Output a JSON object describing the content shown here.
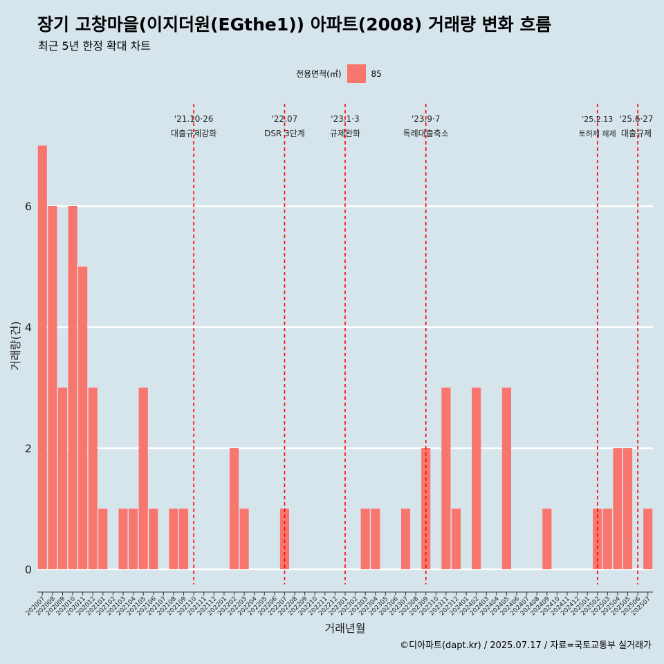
{
  "header": {
    "title": "장기 고창마을(이지더원(EGthe1)) 아파트(2008) 거래량 변화 흐름",
    "subtitle": "최근 5년 한정 확대 차트"
  },
  "legend": {
    "title": "전용면적(㎡)",
    "items": [
      {
        "label": "85",
        "color": "#f8766d"
      }
    ]
  },
  "footer": {
    "caption": "©디아파트(dapt.kr) / 2025.07.17 / 자료=국토교통부 실거래가"
  },
  "chart_data": {
    "type": "bar",
    "xlabel": "거래년월",
    "ylabel": "거래량(건)",
    "ylim": [
      0,
      7
    ],
    "yticks": [
      0,
      2,
      4,
      6
    ],
    "grid": true,
    "legend_position": "top",
    "bar_color": "#f8766d",
    "categories": [
      "202007",
      "202008",
      "202009",
      "202010",
      "202011",
      "202012",
      "202101",
      "202102",
      "202103",
      "202104",
      "202105",
      "202106",
      "202107",
      "202108",
      "202109",
      "202110",
      "202111",
      "202112",
      "202201",
      "202202",
      "202203",
      "202204",
      "202205",
      "202206",
      "202207",
      "202208",
      "202209",
      "202210",
      "202211",
      "202212",
      "202301",
      "202302",
      "202303",
      "202304",
      "202305",
      "202306",
      "202307",
      "202308",
      "202309",
      "202310",
      "202311",
      "202312",
      "202401",
      "202402",
      "202403",
      "202404",
      "202405",
      "202406",
      "202407",
      "202408",
      "202409",
      "202410",
      "202411",
      "202412",
      "202501",
      "202502",
      "202503",
      "202504",
      "202505",
      "202506",
      "202507"
    ],
    "series": [
      {
        "name": "85",
        "values": [
          7,
          6,
          3,
          6,
          5,
          3,
          1,
          0,
          1,
          1,
          3,
          1,
          0,
          1,
          1,
          0,
          0,
          0,
          0,
          2,
          1,
          0,
          0,
          0,
          1,
          0,
          0,
          0,
          0,
          0,
          0,
          0,
          1,
          1,
          0,
          0,
          1,
          0,
          2,
          0,
          3,
          1,
          0,
          3,
          0,
          0,
          3,
          0,
          0,
          0,
          1,
          0,
          0,
          0,
          0,
          1,
          1,
          2,
          2,
          0,
          1
        ]
      }
    ],
    "annotations": [
      {
        "date": "'21.10·26",
        "label": "대출규제강화",
        "at": "202110"
      },
      {
        "date": "'22.07",
        "label": "DSR 3단계",
        "at": "202207"
      },
      {
        "date": "'23.1·3",
        "label": "규제완화",
        "at": "202301"
      },
      {
        "date": "'23.9·7",
        "label": "특례대출축소",
        "at": "202309"
      },
      {
        "date": "'25.2.13",
        "label": "토허제 해제",
        "at": "202502"
      },
      {
        "date": "'25.6·27",
        "label": "대출규제",
        "at": "202506"
      }
    ],
    "annotation_color": "#ff0000"
  }
}
